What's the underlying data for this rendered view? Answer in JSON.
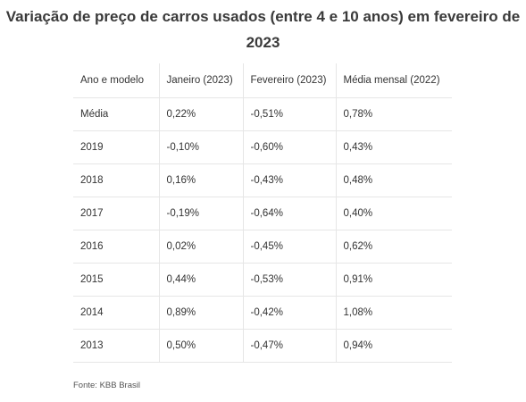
{
  "title": "Variação de preço de carros usados (entre 4 e 10 anos) em fevereiro de 2023",
  "source": "Fonte: KBB Brasil",
  "chart_data": {
    "type": "table",
    "title": "Variação de preço de carros usados (entre 4 e 10 anos) em fevereiro de 2023",
    "columns": [
      "Ano e modelo",
      "Janeiro (2023)",
      "Fevereiro (2023)",
      "Média mensal (2022)"
    ],
    "rows": [
      [
        "Média",
        "0,22%",
        "-0,51%",
        "0,78%"
      ],
      [
        "2019",
        "-0,10%",
        "-0,60%",
        "0,43%"
      ],
      [
        "2018",
        "0,16%",
        "-0,43%",
        "0,48%"
      ],
      [
        "2017",
        "-0,19%",
        "-0,64%",
        "0,40%"
      ],
      [
        "2016",
        "0,02%",
        "-0,45%",
        "0,62%"
      ],
      [
        "2015",
        "0,44%",
        "-0,53%",
        "0,91%"
      ],
      [
        "2014",
        "0,89%",
        "-0,42%",
        "1,08%"
      ],
      [
        "2013",
        "0,50%",
        "-0,47%",
        "0,94%"
      ]
    ],
    "source": "Fonte: KBB Brasil"
  }
}
